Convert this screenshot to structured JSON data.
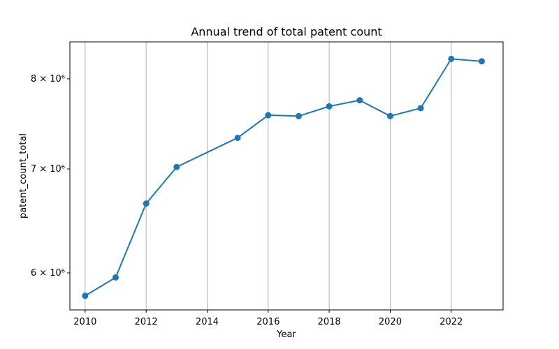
{
  "chart_data": {
    "type": "line",
    "title": "Annual trend of total patent count",
    "xlabel": "Year",
    "ylabel": "patent_count_total",
    "yscale": "log",
    "grid": "x-only",
    "x": [
      2010,
      2011,
      2012,
      2013,
      2015,
      2016,
      2017,
      2018,
      2019,
      2020,
      2021,
      2022,
      2023
    ],
    "series": [
      {
        "name": "patent_count_total",
        "color": "#1f77b4",
        "values": [
          5800000,
          5960000,
          6650000,
          7020000,
          7330000,
          7580000,
          7570000,
          7680000,
          7750000,
          7570000,
          7660000,
          8240000,
          8210000
        ]
      }
    ],
    "xlim": [
      2009.5,
      2023.7
    ],
    "ylim": [
      5680000,
      8450000
    ],
    "x_ticks": [
      {
        "value": 2010,
        "label": "2010"
      },
      {
        "value": 2012,
        "label": "2012"
      },
      {
        "value": 2014,
        "label": "2014"
      },
      {
        "value": 2016,
        "label": "2016"
      },
      {
        "value": 2018,
        "label": "2018"
      },
      {
        "value": 2020,
        "label": "2020"
      },
      {
        "value": 2022,
        "label": "2022"
      }
    ],
    "y_ticks": [
      {
        "value": 6000000,
        "label": "6 × 10⁶"
      },
      {
        "value": 7000000,
        "label": "7 × 10⁶"
      },
      {
        "value": 8000000,
        "label": "8 × 10⁶"
      }
    ]
  }
}
